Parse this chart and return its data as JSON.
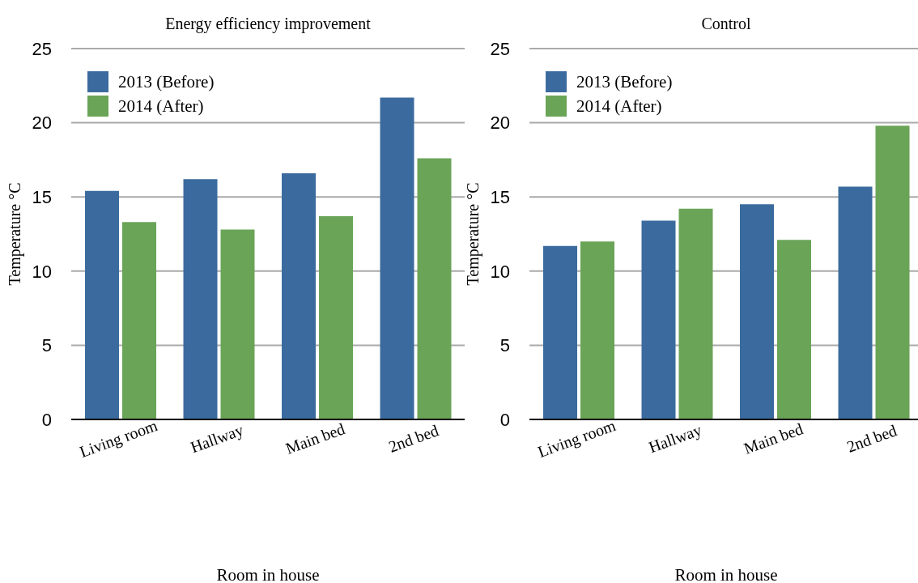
{
  "chart_data": [
    {
      "type": "bar",
      "title": "Energy efficiency improvement",
      "xlabel": "Room in house",
      "ylabel": "Temperature °C",
      "categories": [
        "Living room",
        "Hallway",
        "Main bed",
        "2nd bed"
      ],
      "series": [
        {
          "name": "2013 (Before)",
          "color": "#3b6b9e",
          "values": [
            15.4,
            16.2,
            16.6,
            21.7
          ]
        },
        {
          "name": "2014 (After)",
          "color": "#6aa457",
          "values": [
            13.3,
            12.8,
            13.7,
            17.6
          ]
        }
      ],
      "ylim": [
        0,
        25
      ],
      "yticks": [
        0,
        5,
        10,
        15,
        20,
        25
      ],
      "grid": "y",
      "legend": "top left"
    },
    {
      "type": "bar",
      "title": "Control",
      "xlabel": "Room in house",
      "ylabel": "Temperature °C",
      "categories": [
        "Living room",
        "Hallway",
        "Main bed",
        "2nd bed"
      ],
      "series": [
        {
          "name": "2013 (Before)",
          "color": "#3b6b9e",
          "values": [
            11.7,
            13.4,
            14.5,
            15.7
          ]
        },
        {
          "name": "2014 (After)",
          "color": "#6aa457",
          "values": [
            12.0,
            14.2,
            12.1,
            19.8
          ]
        }
      ],
      "ylim": [
        0,
        25
      ],
      "yticks": [
        0,
        5,
        10,
        15,
        20,
        25
      ],
      "grid": "y",
      "legend": "top left"
    }
  ]
}
